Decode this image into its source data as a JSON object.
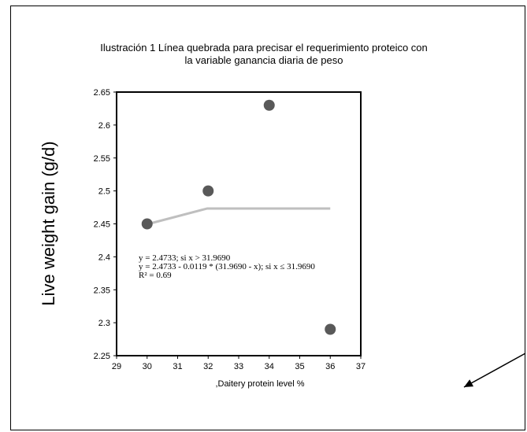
{
  "chart_data": {
    "type": "scatter",
    "title": "Ilustración 1 Línea quebrada para precisar el requerimiento proteico con la variable ganancia diaria de peso",
    "title_lines": [
      "Ilustración 1 Línea quebrada para precisar el requerimiento proteico con",
      "la variable ganancia diaria de peso"
    ],
    "xlabel": ",Daitery protein level %",
    "ylabel": "Live weight gain (g/d)",
    "xlim": [
      29,
      37
    ],
    "ylim": [
      2.25,
      2.65
    ],
    "x_ticks": [
      "29",
      "30",
      "31",
      "32",
      "33",
      "34",
      "35",
      "36",
      "37"
    ],
    "y_ticks": [
      "2.25",
      "2.3",
      "2.35",
      "2.4",
      "2.45",
      "2.5",
      "2.55",
      "2.6",
      "2.65"
    ],
    "points": [
      {
        "x": 30,
        "y": 2.45
      },
      {
        "x": 32,
        "y": 2.5
      },
      {
        "x": 34,
        "y": 2.63
      },
      {
        "x": 36,
        "y": 2.29
      }
    ],
    "fit_line": [
      {
        "x": 30,
        "y": 2.4494
      },
      {
        "x": 31.969,
        "y": 2.4733
      },
      {
        "x": 36,
        "y": 2.4733
      }
    ],
    "equations": [
      "y = 2.4733; si x > 31.9690",
      "y = 2.4733 - 0.0119 * (31.9690 - x); si x ≤ 31.9690",
      "R² = 0.69"
    ],
    "grid": false,
    "colors": {
      "points": "#595959",
      "fit_line": "#bfbfbf",
      "axis": "#000000",
      "arrow": "#000000"
    }
  }
}
